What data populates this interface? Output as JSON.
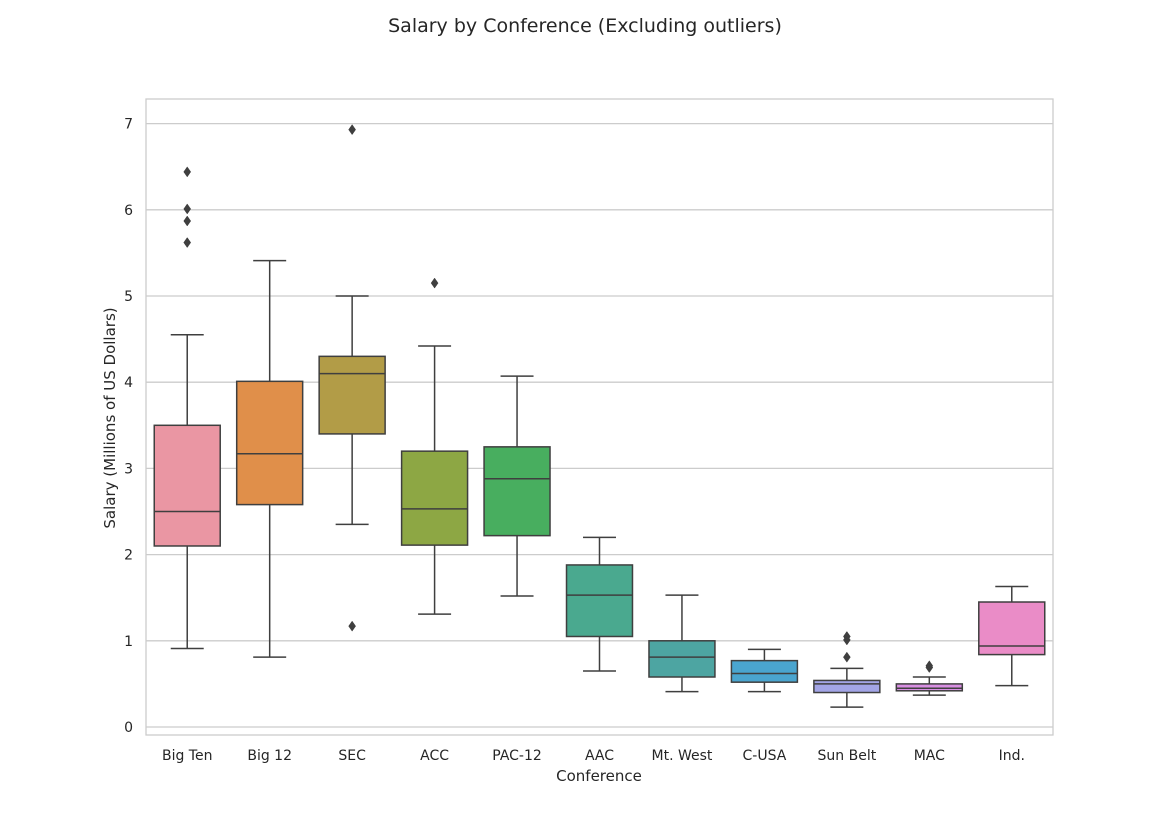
{
  "chart_data": {
    "type": "boxplot",
    "title": "Salary by Conference (Excluding outliers)",
    "xlabel": "Conference",
    "ylabel": "Salary (Millions of US Dollars)",
    "ylim": [
      -0.1,
      7.3
    ],
    "yticks": [
      0,
      1,
      2,
      3,
      4,
      5,
      6,
      7
    ],
    "grid": "horizontal",
    "categories": [
      "Big Ten",
      "Big 12",
      "SEC",
      "ACC",
      "PAC-12",
      "AAC",
      "Mt. West",
      "C-USA",
      "Sun Belt",
      "MAC",
      "Ind."
    ],
    "boxes": [
      {
        "name": "Big Ten",
        "whisker_low": 0.91,
        "q1": 2.1,
        "median": 2.5,
        "q3": 3.5,
        "whisker_high": 4.55,
        "outliers": [
          5.62,
          5.87,
          6.01,
          6.44
        ],
        "color": "#ea96a3"
      },
      {
        "name": "Big 12",
        "whisker_low": 0.81,
        "q1": 2.58,
        "median": 3.17,
        "q3": 4.01,
        "whisker_high": 5.41,
        "outliers": [],
        "color": "#e08f4a"
      },
      {
        "name": "SEC",
        "whisker_low": 2.35,
        "q1": 3.4,
        "median": 4.1,
        "q3": 4.3,
        "whisker_high": 5.0,
        "outliers": [
          1.17,
          6.93
        ],
        "color": "#b29c47"
      },
      {
        "name": "ACC",
        "whisker_low": 1.31,
        "q1": 2.11,
        "median": 2.53,
        "q3": 3.2,
        "whisker_high": 4.42,
        "outliers": [
          5.15
        ],
        "color": "#8da744"
      },
      {
        "name": "PAC-12",
        "whisker_low": 1.52,
        "q1": 2.22,
        "median": 2.88,
        "q3": 3.25,
        "whisker_high": 4.07,
        "outliers": [],
        "color": "#48ae5f"
      },
      {
        "name": "AAC",
        "whisker_low": 0.65,
        "q1": 1.05,
        "median": 1.53,
        "q3": 1.88,
        "whisker_high": 2.2,
        "outliers": [],
        "color": "#4aa98f"
      },
      {
        "name": "Mt. West",
        "whisker_low": 0.41,
        "q1": 0.58,
        "median": 0.81,
        "q3": 1.0,
        "whisker_high": 1.53,
        "outliers": [],
        "color": "#4da5a2"
      },
      {
        "name": "C-USA",
        "whisker_low": 0.41,
        "q1": 0.52,
        "median": 0.62,
        "q3": 0.77,
        "whisker_high": 0.9,
        "outliers": [],
        "color": "#4aa5cf"
      },
      {
        "name": "Sun Belt",
        "whisker_low": 0.23,
        "q1": 0.4,
        "median": 0.5,
        "q3": 0.54,
        "whisker_high": 0.68,
        "outliers": [
          0.81,
          1.01,
          1.05
        ],
        "color": "#a3a5e6"
      },
      {
        "name": "MAC",
        "whisker_low": 0.37,
        "q1": 0.42,
        "median": 0.45,
        "q3": 0.5,
        "whisker_high": 0.58,
        "outliers": [
          0.69,
          0.71
        ],
        "color": "#d88fe2"
      },
      {
        "name": "Ind.",
        "whisker_low": 0.48,
        "q1": 0.84,
        "median": 0.94,
        "q3": 1.45,
        "whisker_high": 1.63,
        "outliers": [],
        "color": "#ea8cc7"
      }
    ]
  }
}
